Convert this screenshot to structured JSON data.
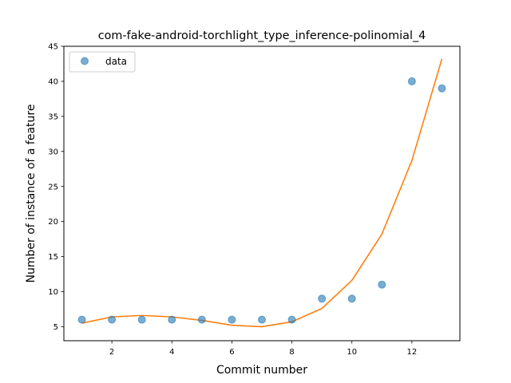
{
  "chart_data": {
    "type": "scatter",
    "title": "com-fake-android-torchlight_type_inference-polinomial_4",
    "xlabel": "Commit number",
    "ylabel": "Number of instance of a feature",
    "xlim": [
      0.4,
      13.6
    ],
    "ylim": [
      3.0,
      45
    ],
    "xticks": [
      2,
      4,
      6,
      8,
      10,
      12
    ],
    "yticks": [
      5,
      10,
      15,
      20,
      25,
      30,
      35,
      40,
      45
    ],
    "grid": false,
    "legend": {
      "placement": "top-left",
      "entries": [
        "data"
      ]
    },
    "series": [
      {
        "name": "data",
        "kind": "scatter",
        "color": "#1f77b4",
        "x": [
          1,
          2,
          3,
          4,
          5,
          6,
          7,
          8,
          9,
          10,
          11,
          12,
          13
        ],
        "y": [
          6,
          6,
          6,
          6,
          6,
          6,
          6,
          6,
          9,
          9,
          11,
          40,
          39
        ]
      },
      {
        "kind": "line",
        "color": "#ff7f0e",
        "x": [
          1,
          2,
          3,
          4,
          5,
          6,
          7,
          8,
          9,
          10,
          11,
          12,
          13
        ],
        "y": [
          5.5,
          6.4,
          6.6,
          6.4,
          5.9,
          5.2,
          5.0,
          5.7,
          7.6,
          11.6,
          18.2,
          28.7,
          43.2
        ]
      }
    ]
  }
}
